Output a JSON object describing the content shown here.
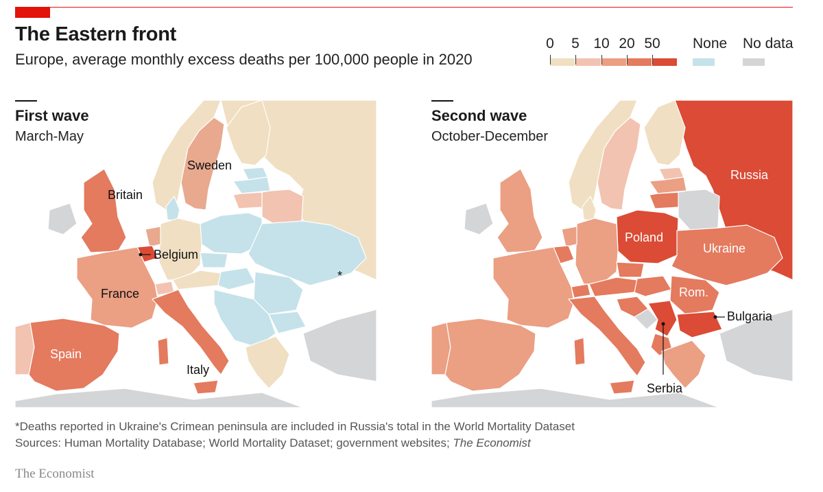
{
  "header": {
    "title": "The Eastern front",
    "subtitle": "Europe, average monthly excess deaths per 100,000 people in 2020"
  },
  "legend": {
    "ticks": [
      "0",
      "5",
      "10",
      "20",
      "50"
    ],
    "none_label": "None",
    "nodata_label": "No data",
    "colors": {
      "bin_0_5": "#f0dfc2",
      "bin_5_10": "#f2c3b0",
      "bin_10_20": "#eb9f83",
      "bin_20_50": "#e47a5e",
      "bin_50_plus": "#db4b35",
      "none": "#c5e2ea",
      "no_data": "#d4d5d7"
    }
  },
  "panels": [
    {
      "title": "First wave",
      "subtitle": "March-May",
      "labels": {
        "sweden": "Sweden",
        "britain": "Britain",
        "belgium": "Belgium",
        "france": "France",
        "spain": "Spain",
        "italy": "Italy",
        "asterisk": "*"
      }
    },
    {
      "title": "Second wave",
      "subtitle": "October-December",
      "labels": {
        "russia": "Russia",
        "poland": "Poland",
        "ukraine": "Ukraine",
        "romania": "Rom.",
        "bulgaria": "Bulgaria",
        "serbia": "Serbia"
      }
    }
  ],
  "footnote": "*Deaths reported in Ukraine's Crimean peninsula are included in Russia's total in the World Mortality Dataset",
  "sources": {
    "prefix": "Sources: Human Mortality Database; World Mortality Dataset; government websites; ",
    "italic": "The Economist"
  },
  "brand": "The Economist"
}
